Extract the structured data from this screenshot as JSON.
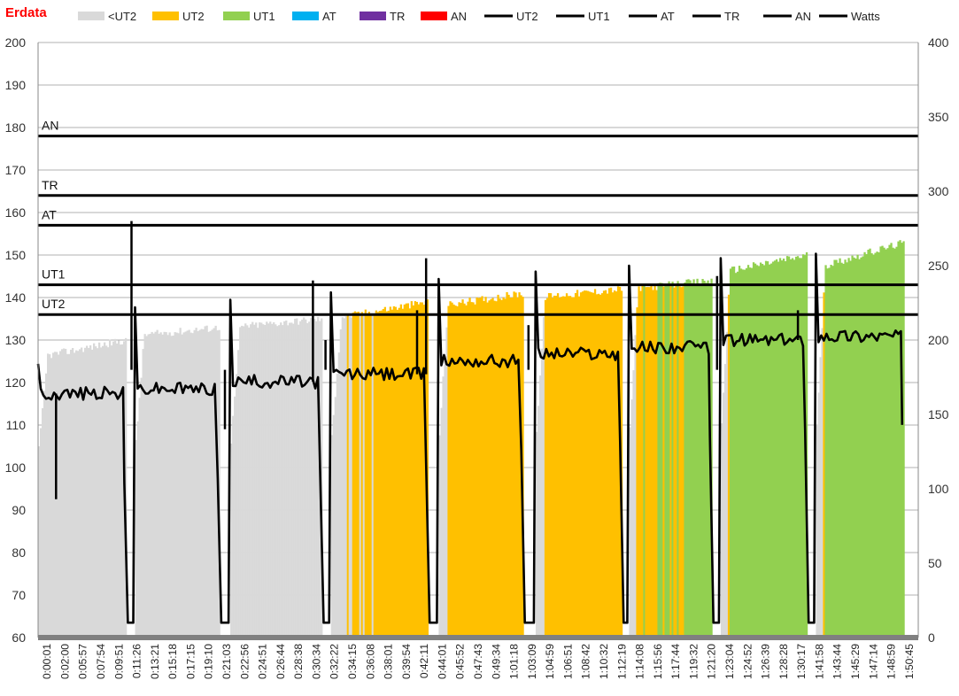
{
  "chart_data": {
    "type": "bar+line",
    "title": "Erdata",
    "legend_position": "top",
    "legend": [
      {
        "label": "<UT2",
        "kind": "swatch",
        "color": "#d9d9d9"
      },
      {
        "label": "UT2",
        "kind": "swatch",
        "color": "#ffc000"
      },
      {
        "label": "UT1",
        "kind": "swatch",
        "color": "#92d050"
      },
      {
        "label": "AT",
        "kind": "swatch",
        "color": "#00b0f0"
      },
      {
        "label": "TR",
        "kind": "swatch",
        "color": "#7030a0"
      },
      {
        "label": "AN",
        "kind": "swatch",
        "color": "#ff0000"
      },
      {
        "label": "UT2",
        "kind": "line",
        "color": "#000000"
      },
      {
        "label": "UT1",
        "kind": "line",
        "color": "#000000"
      },
      {
        "label": "AT",
        "kind": "line",
        "color": "#000000"
      },
      {
        "label": "TR",
        "kind": "line",
        "color": "#000000"
      },
      {
        "label": "AN",
        "kind": "line",
        "color": "#000000"
      },
      {
        "label": "Watts",
        "kind": "line",
        "color": "#000000"
      }
    ],
    "y_left": {
      "min": 60,
      "max": 200,
      "step": 10,
      "ticks": [
        "60",
        "70",
        "80",
        "90",
        "100",
        "110",
        "120",
        "130",
        "140",
        "150",
        "160",
        "170",
        "180",
        "190",
        "200"
      ]
    },
    "y_right": {
      "min": 0,
      "max": 400,
      "step": 50,
      "ticks": [
        "0",
        "50",
        "100",
        "150",
        "200",
        "250",
        "300",
        "350",
        "400"
      ]
    },
    "grid": true,
    "x_ticks": [
      "0:00:01",
      "0:02:00",
      "0:05:57",
      "0:07:54",
      "0:09:51",
      "0:11:26",
      "0:13:21",
      "0:15:18",
      "0:17:15",
      "0:19:10",
      "0:21:03",
      "0:22:56",
      "0:24:51",
      "0:26:44",
      "0:28:38",
      "0:30:34",
      "0:32:22",
      "0:34:15",
      "0:36:08",
      "0:38:01",
      "0:39:54",
      "0:42:11",
      "0:44:01",
      "0:45:52",
      "0:47:43",
      "0:49:34",
      "1:01:18",
      "1:03:09",
      "1:04:59",
      "1:06:51",
      "1:08:42",
      "1:10:32",
      "1:12:19",
      "1:14:08",
      "1:15:56",
      "1:17:44",
      "1:19:32",
      "1:21:20",
      "1:23:04",
      "1:24:52",
      "1:26:39",
      "1:28:28",
      "1:30:17",
      "1:41:58",
      "1:43:44",
      "1:45:29",
      "1:47:14",
      "1:48:59",
      "1:50:45"
    ],
    "reference_lines": [
      {
        "name": "AN",
        "label": "AN",
        "value": 178
      },
      {
        "name": "TR",
        "label": "TR",
        "value": 164
      },
      {
        "name": "AT",
        "label": "AT",
        "value": 157
      },
      {
        "name": "UT1",
        "label": "UT1",
        "value": 143
      },
      {
        "name": "UT2",
        "label": "UT2",
        "value": 136
      }
    ],
    "heart_rate_intervals": [
      {
        "start": 0,
        "end": 4.9,
        "hr_start": 126,
        "hr_end": 130
      },
      {
        "start": 5.4,
        "end": 10.1,
        "hr_start": 131,
        "hr_end": 133
      },
      {
        "start": 10.7,
        "end": 15.8,
        "hr_start": 133,
        "hr_end": 135
      },
      {
        "start": 16.3,
        "end": 21.7,
        "hr_start": 135,
        "hr_end": 139
      },
      {
        "start": 22.3,
        "end": 27.0,
        "hr_start": 138,
        "hr_end": 141
      },
      {
        "start": 27.7,
        "end": 32.5,
        "hr_start": 140,
        "hr_end": 142
      },
      {
        "start": 32.9,
        "end": 37.5,
        "hr_start": 142,
        "hr_end": 144
      },
      {
        "start": 38.0,
        "end": 42.8,
        "hr_start": 146,
        "hr_end": 150
      },
      {
        "start": 43.3,
        "end": 48.2,
        "hr_start": 147,
        "hr_end": 153
      }
    ],
    "hr_zone_bands": [
      {
        "from": 60,
        "to": 136,
        "zone": "<UT2"
      },
      {
        "from": 136,
        "to": 143,
        "zone": "UT2"
      },
      {
        "from": 143,
        "to": 157,
        "zone": "UT1"
      }
    ],
    "watts_intervals": [
      {
        "start": 0,
        "end": 4.9,
        "watts": 164
      },
      {
        "start": 5.4,
        "end": 10.1,
        "watts": 167
      },
      {
        "start": 10.7,
        "end": 15.8,
        "watts": 172
      },
      {
        "start": 16.3,
        "end": 21.7,
        "watts": 177
      },
      {
        "start": 22.3,
        "end": 27.0,
        "watts": 186
      },
      {
        "start": 27.7,
        "end": 32.5,
        "watts": 191
      },
      {
        "start": 32.9,
        "end": 37.5,
        "watts": 195
      },
      {
        "start": 38.0,
        "end": 42.8,
        "watts": 200
      },
      {
        "start": 43.3,
        "end": 48.2,
        "watts": 203
      }
    ],
    "watts_spikes": [
      {
        "x": 1.0,
        "value": 93
      },
      {
        "x": 5.2,
        "value": 280
      },
      {
        "x": 10.4,
        "value": 140
      },
      {
        "x": 15.3,
        "value": 240
      },
      {
        "x": 16.0,
        "value": 200
      },
      {
        "x": 21.1,
        "value": 220
      },
      {
        "x": 21.6,
        "value": 255
      },
      {
        "x": 27.3,
        "value": 210
      },
      {
        "x": 37.8,
        "value": 243
      },
      {
        "x": 42.3,
        "value": 220
      }
    ]
  }
}
